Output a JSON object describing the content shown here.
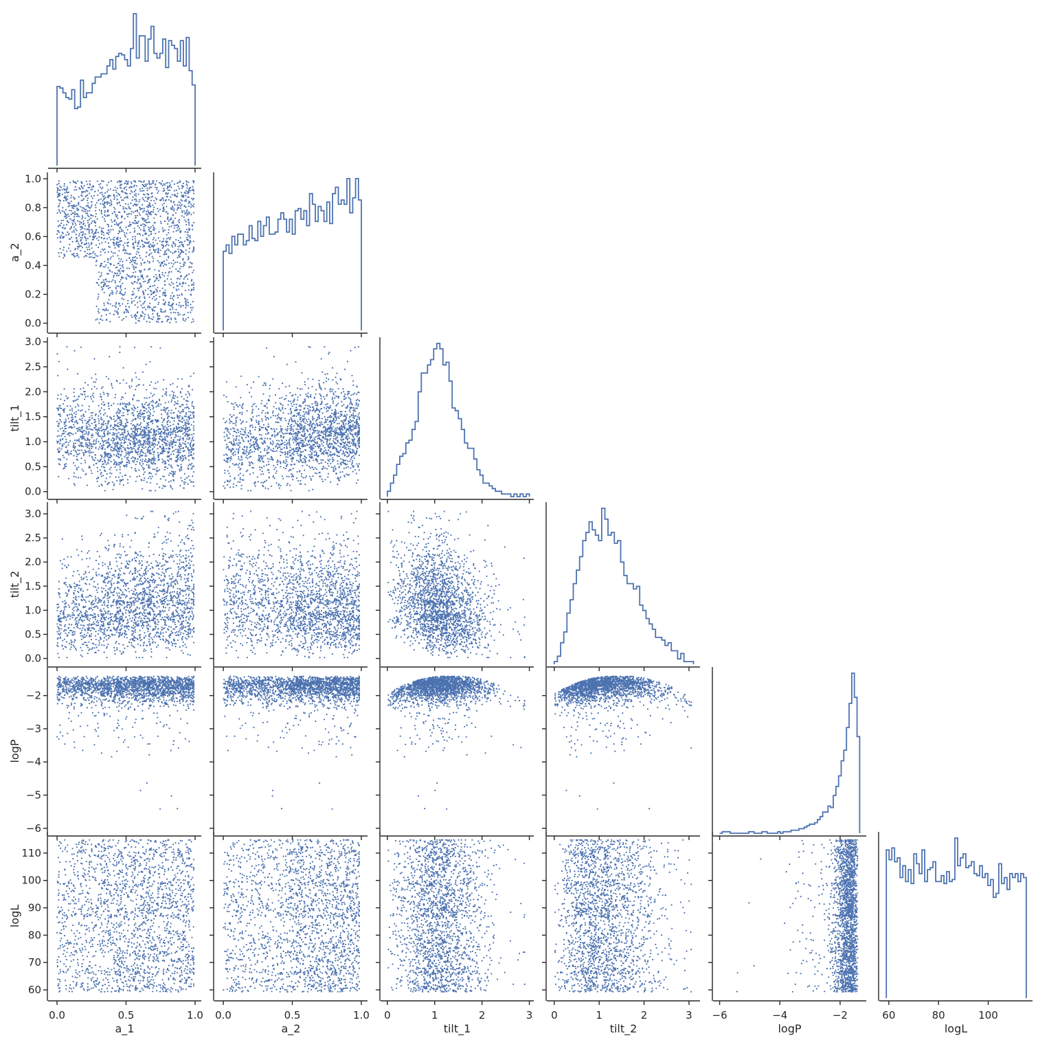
{
  "chart_data": {
    "type": "pairplot",
    "variables": [
      "a_1",
      "a_2",
      "tilt_1",
      "tilt_2",
      "logP",
      "logL"
    ],
    "corner": true,
    "diag_kind": "histogram (step)",
    "offdiag_kind": "scatter",
    "point_count_approx": 2000,
    "colors": {
      "series": "#4c72b0",
      "axes": "#262626",
      "background": "#ffffff"
    },
    "axes": {
      "a_1": {
        "range": [
          -0.05,
          1.03
        ],
        "ticks": [
          0.0,
          0.5,
          1.0
        ],
        "tick_labels": [
          "0.0",
          "0.5",
          "1.0"
        ]
      },
      "a_2": {
        "range": [
          -0.05,
          1.03
        ],
        "ticks": [
          0.0,
          0.2,
          0.4,
          0.6,
          0.8,
          1.0
        ],
        "tick_labels": [
          "0.0",
          "0.2",
          "0.4",
          "0.6",
          "0.8",
          "1.0"
        ],
        "x_ticks": [
          0.0,
          0.5,
          1.0
        ],
        "x_tick_labels": [
          "0.0",
          "0.5",
          "1.0"
        ]
      },
      "tilt_1": {
        "range": [
          -0.1,
          3.05
        ],
        "ticks": [
          0.0,
          0.5,
          1.0,
          1.5,
          2.0,
          2.5,
          3.0
        ],
        "tick_labels": [
          "0.0",
          "0.5",
          "1.0",
          "1.5",
          "2.0",
          "2.5",
          "3.0"
        ],
        "x_ticks": [
          0,
          1,
          2,
          3
        ],
        "x_tick_labels": [
          "0",
          "1",
          "2",
          "3"
        ]
      },
      "tilt_2": {
        "range": [
          -0.12,
          3.2
        ],
        "ticks": [
          0.0,
          0.5,
          1.0,
          1.5,
          2.0,
          2.5,
          3.0
        ],
        "tick_labels": [
          "0.0",
          "0.5",
          "1.0",
          "1.5",
          "2.0",
          "2.5",
          "3.0"
        ],
        "x_ticks": [
          0,
          1,
          2,
          3
        ],
        "x_tick_labels": [
          "0",
          "1",
          "2",
          "3"
        ]
      },
      "logP": {
        "range": [
          -6.15,
          -1.2
        ],
        "ticks": [
          -6,
          -5,
          -4,
          -3,
          -2
        ],
        "tick_labels": [
          "−6",
          "−5",
          "−4",
          "−3",
          "−2"
        ],
        "x_ticks": [
          -6,
          -4,
          -2
        ],
        "x_tick_labels": [
          "−6",
          "−4",
          "−2"
        ]
      },
      "logL": {
        "range": [
          57,
          117
        ],
        "ticks": [
          60,
          70,
          80,
          90,
          100,
          110
        ],
        "tick_labels": [
          "60",
          "70",
          "80",
          "90",
          "100",
          "110"
        ],
        "x_ticks": [
          60,
          80,
          100
        ],
        "x_tick_labels": [
          "60",
          "80",
          "100"
        ]
      }
    },
    "histograms": {
      "a_1": {
        "range": [
          0.0,
          1.0
        ],
        "counts": [
          50,
          49,
          46,
          43,
          42,
          48,
          36,
          37,
          54,
          43,
          46,
          46,
          52,
          56,
          56,
          58,
          58,
          63,
          67,
          61,
          69,
          71,
          70,
          67,
          63,
          74,
          96,
          68,
          82,
          82,
          66,
          80,
          88,
          71,
          68,
          71,
          80,
          62,
          79,
          76,
          74,
          66,
          79,
          63,
          81,
          60,
          51
        ]
      },
      "a_2": {
        "range": [
          0.0,
          1.0
        ],
        "counts": [
          37,
          40,
          36,
          44,
          40,
          45,
          45,
          40,
          42,
          49,
          43,
          42,
          51,
          44,
          49,
          53,
          45,
          45,
          46,
          52,
          55,
          52,
          46,
          52,
          45,
          56,
          57,
          52,
          56,
          49,
          64,
          59,
          51,
          58,
          56,
          51,
          60,
          50,
          64,
          67,
          59,
          61,
          59,
          71,
          55,
          62,
          71,
          61
        ]
      },
      "tilt_1": {
        "range": [
          0.0,
          3.0
        ],
        "counts": [
          2,
          5,
          8,
          12,
          15,
          16,
          20,
          21,
          25,
          28,
          39,
          46,
          46,
          49,
          51,
          55,
          57,
          55,
          49,
          50,
          43,
          33,
          32,
          29,
          25,
          20,
          18,
          18,
          14,
          10,
          8,
          5,
          5,
          4,
          3,
          2,
          2,
          1,
          1,
          1,
          0,
          1,
          0,
          1,
          0,
          1
        ]
      },
      "tilt_2": {
        "range": [
          0.0,
          3.1
        ],
        "counts": [
          1,
          3,
          8,
          12,
          19,
          24,
          30,
          35,
          40,
          46,
          49,
          53,
          50,
          48,
          46,
          58,
          54,
          48,
          49,
          45,
          46,
          38,
          33,
          30,
          30,
          28,
          29,
          22,
          20,
          17,
          15,
          13,
          10,
          10,
          9,
          7,
          8,
          5,
          5,
          2,
          4,
          1,
          1,
          1
        ]
      },
      "logP": {
        "range": [
          -6.0,
          -1.35
        ],
        "counts": [
          0,
          1,
          1,
          1,
          0,
          0,
          0,
          0,
          0,
          0,
          0,
          1,
          1,
          0,
          0,
          0,
          1,
          1,
          0,
          0,
          0,
          0,
          1,
          0,
          1,
          1,
          1,
          2,
          2,
          2,
          3,
          3,
          4,
          5,
          6,
          6,
          7,
          9,
          11,
          14,
          14,
          18,
          17,
          25,
          31,
          38,
          48,
          55,
          70,
          86,
          106,
          90,
          64
        ]
      },
      "logL": {
        "range": [
          59.0,
          115.3
        ],
        "counts": [
          75,
          70,
          76,
          69,
          71,
          61,
          67,
          59,
          65,
          58,
          73,
          68,
          63,
          75,
          59,
          65,
          66,
          69,
          59,
          59,
          62,
          58,
          64,
          59,
          60,
          81,
          67,
          71,
          73,
          66,
          67,
          69,
          63,
          62,
          67,
          61,
          63,
          57,
          60,
          51,
          53,
          68,
          58,
          61,
          55,
          63,
          61,
          63,
          59,
          63,
          61
        ]
      }
    }
  }
}
